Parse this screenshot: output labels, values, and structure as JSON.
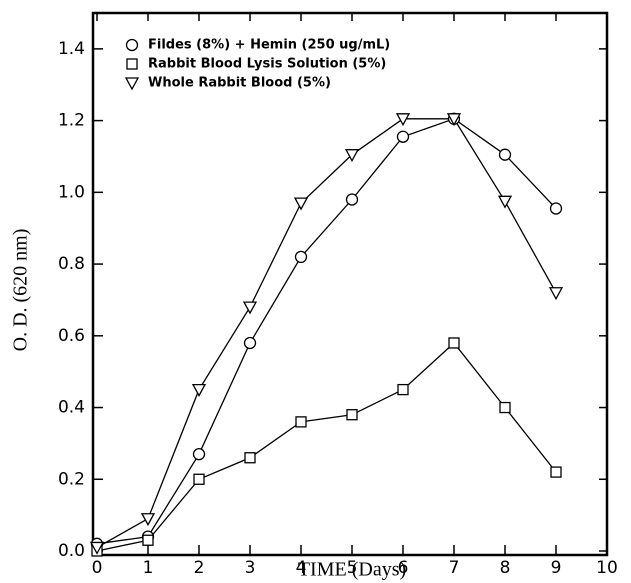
{
  "chart_data": {
    "type": "line",
    "x_label": "TIME (Days)",
    "y_label": "O. D. (620 nm)",
    "x": [
      0,
      1,
      2,
      3,
      4,
      5,
      6,
      7,
      8,
      9
    ],
    "series": [
      {
        "name": "Fildes (8%) + Hemin (250 ug/mL)",
        "marker": "circle",
        "color": "#000000",
        "values": [
          0.02,
          0.04,
          0.27,
          0.58,
          0.82,
          0.98,
          1.155,
          1.205,
          1.105,
          0.955
        ]
      },
      {
        "name": "Rabbit Blood Lysis Solution (5%)",
        "marker": "square",
        "color": "#000000",
        "values": [
          0.0,
          0.03,
          0.2,
          0.26,
          0.36,
          0.38,
          0.45,
          0.58,
          0.4,
          0.22
        ]
      },
      {
        "name": "Whole Rabbit Blood (5%)",
        "marker": "triangle-down",
        "color": "#000000",
        "values": [
          0.01,
          0.09,
          0.45,
          0.68,
          0.97,
          1.105,
          1.205,
          1.205,
          0.975,
          0.72
        ]
      }
    ],
    "xlim": [
      0,
      10
    ],
    "ylim": [
      0,
      1.5
    ],
    "xticks": [
      0,
      1,
      2,
      3,
      4,
      5,
      6,
      7,
      8,
      9,
      10
    ],
    "yticks": [
      {
        "value": 0,
        "label": "0.0"
      },
      0.2,
      0.4,
      0.6,
      0.8,
      {
        "value": 1,
        "label": "1.0"
      },
      1.2,
      1.4
    ],
    "legend": "upper left"
  }
}
